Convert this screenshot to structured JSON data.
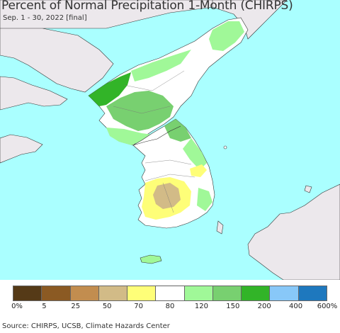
{
  "header": {
    "title": "Percent of Normal Precipitation 1-Month (CHIRPS)",
    "subtitle": "Sep. 1 - 30, 2022 [final]"
  },
  "map": {
    "ocean_color": "#aaffff",
    "other_land_color": "#ece8ec",
    "region": "Korean Peninsula"
  },
  "legend": {
    "colors": [
      "#553a17",
      "#8b5a23",
      "#c28d4f",
      "#d2bb87",
      "#fefe78",
      "#ffffff",
      "#a0f898",
      "#78d070",
      "#32b428",
      "#88c8f8",
      "#1e78be"
    ],
    "labels": [
      "0%",
      "5",
      "25",
      "50",
      "70",
      "80",
      "120",
      "150",
      "200",
      "400",
      "600%"
    ]
  },
  "footer": {
    "source": "Source: CHIRPS, UCSB, Climate Hazards Center"
  }
}
